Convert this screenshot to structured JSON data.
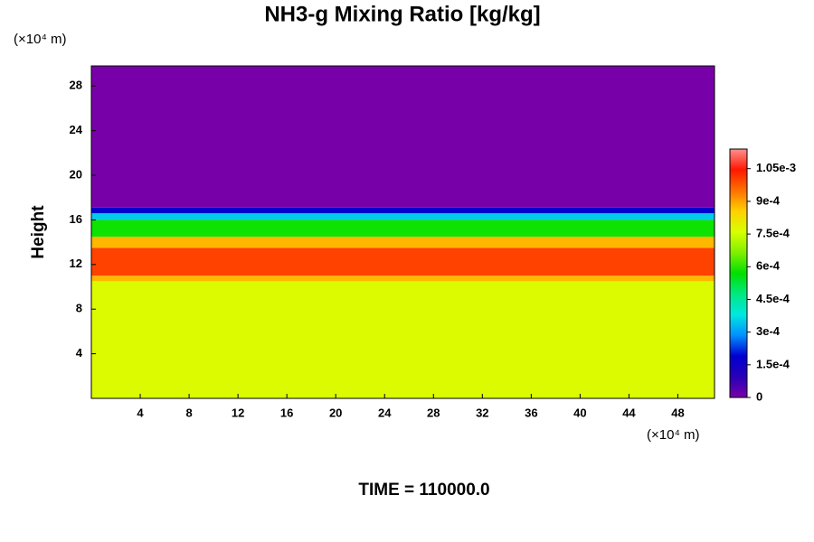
{
  "chart_data": {
    "type": "contour",
    "title": "NH3-g Mixing Ratio [kg/kg]",
    "ylabel": "Height",
    "y_unit": "(×10⁴ m)",
    "x_unit": "(×10⁴ m)",
    "footer": "TIME = 110000.0",
    "xlim": [
      0,
      51
    ],
    "xticks": [
      4,
      8,
      12,
      16,
      20,
      24,
      28,
      32,
      36,
      40,
      44,
      48
    ],
    "ylim": [
      0,
      29.8
    ],
    "yticks": [
      4,
      8,
      12,
      16,
      20,
      24,
      28
    ],
    "clim": [
      0,
      0.00114
    ],
    "cticks": [
      0,
      {
        "value": 0.00015,
        "label": "1.5e-4"
      },
      {
        "value": 0.0003,
        "label": "3e-4"
      },
      {
        "value": 0.00045,
        "label": "4.5e-4"
      },
      {
        "value": 0.0006,
        "label": "6e-4"
      },
      {
        "value": 0.00075,
        "label": "7.5e-4"
      },
      {
        "value": 0.0009,
        "label": "9e-4"
      },
      {
        "value": 0.00105,
        "label": "1.05e-3"
      }
    ],
    "colormap": [
      "#7800a8",
      "#2800b8",
      "#0000d0",
      "#0090ff",
      "#00e8e0",
      "#00e880",
      "#00e000",
      "#80f000",
      "#d8ff00",
      "#ffd000",
      "#ff7000",
      "#ff1800",
      "#ff9090"
    ],
    "layers": [
      {
        "bottom": 0,
        "top": 10.5,
        "value": 0.00077
      },
      {
        "bottom": 10.5,
        "top": 11,
        "value": 0.00088
      },
      {
        "bottom": 11,
        "top": 13.5,
        "value": 0.001
      },
      {
        "bottom": 13.5,
        "top": 14.5,
        "value": 0.00088
      },
      {
        "bottom": 14.5,
        "top": 16,
        "value": 0.00058
      },
      {
        "bottom": 16,
        "top": 16.6,
        "value": 0.00035
      },
      {
        "bottom": 16.6,
        "top": 17.1,
        "value": 0.00018
      },
      {
        "bottom": 17.1,
        "top": 29.8,
        "value": 0
      }
    ]
  }
}
